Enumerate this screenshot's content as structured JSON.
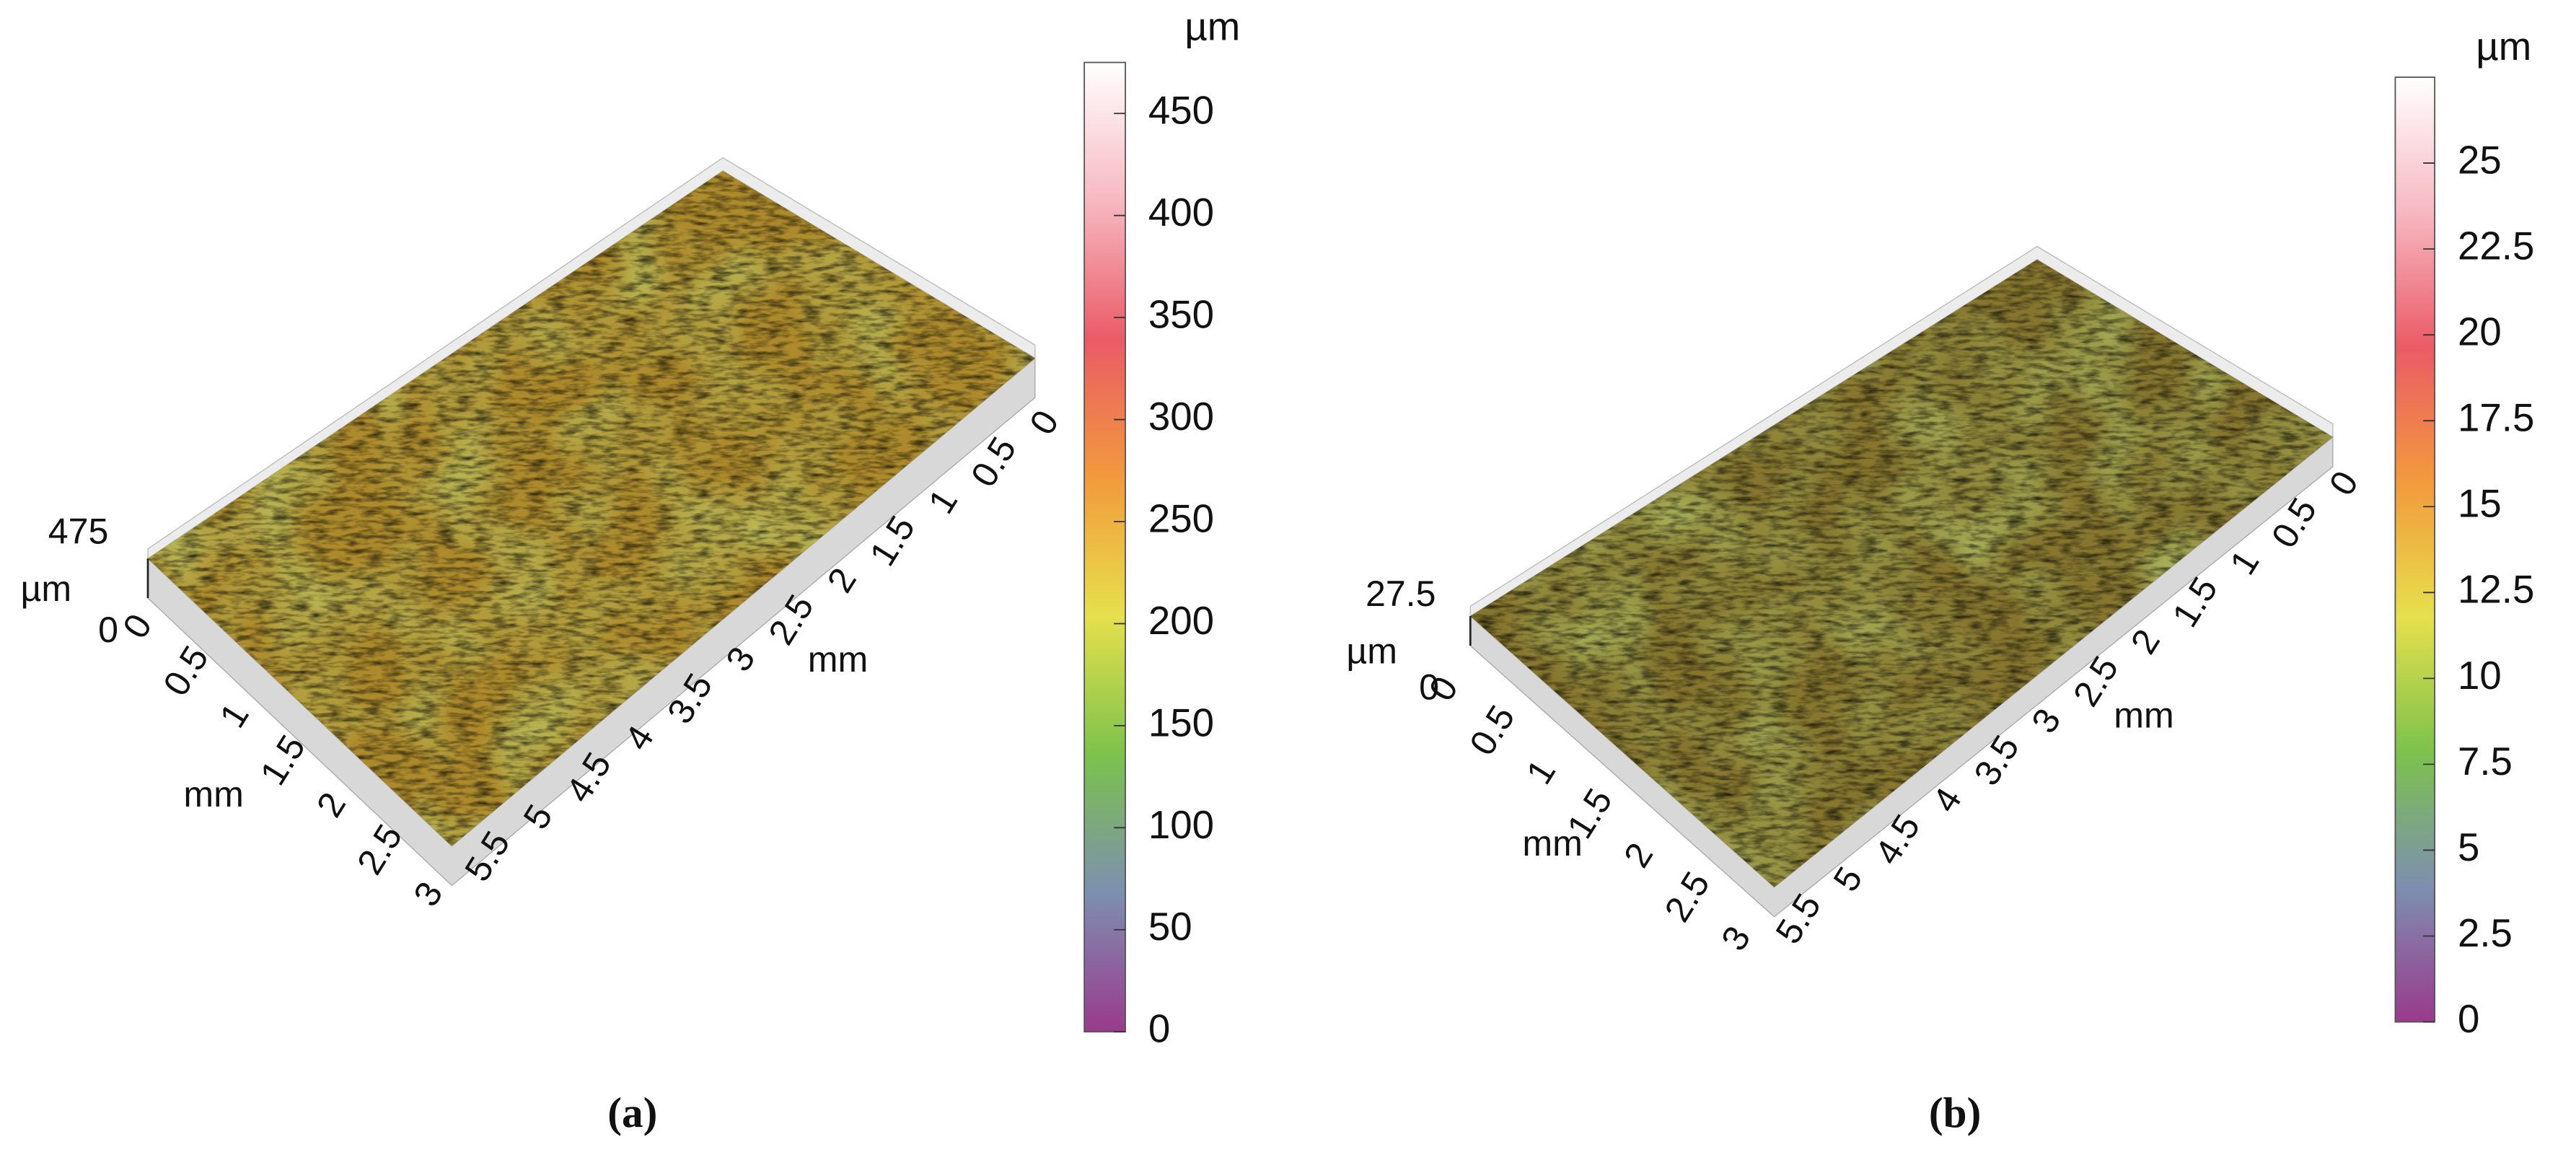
{
  "chart_data": [
    {
      "type": "surface3d",
      "caption": "(a)",
      "xlabel": "mm",
      "ylabel": "mm",
      "zlabel": "µm",
      "colorbar_label": "µm",
      "xlim": [
        0,
        5.5
      ],
      "xticks": [
        0,
        0.5,
        1,
        1.5,
        2,
        2.5,
        3,
        3.5,
        4,
        4.5,
        5,
        5.5
      ],
      "ylim": [
        0,
        3
      ],
      "yticks": [
        0,
        0.5,
        1,
        1.5,
        2,
        2.5,
        3
      ],
      "zlim": [
        0,
        475
      ],
      "zticks": [
        0,
        475
      ],
      "clim": [
        0,
        475
      ],
      "cticks": [
        0,
        50,
        100,
        150,
        200,
        250,
        300,
        350,
        400,
        450
      ],
      "colormap": [
        "#9a3a8c",
        "#7d8fb0",
        "#7cc24c",
        "#e6e04c",
        "#f29a3c",
        "#ea5b66",
        "#f7b8c2",
        "#ffffff"
      ],
      "surface_color": "#ad8b2c"
    },
    {
      "type": "surface3d",
      "caption": "(b)",
      "xlabel": "mm",
      "ylabel": "mm",
      "zlabel": "µm",
      "colorbar_label": "µm",
      "xlim": [
        0,
        5.5
      ],
      "xticks": [
        0,
        0.5,
        1,
        1.5,
        2,
        2.5,
        3,
        3.5,
        4,
        4.5,
        5,
        5.5
      ],
      "ylim": [
        0,
        3
      ],
      "yticks": [
        0,
        0.5,
        1,
        1.5,
        2,
        2.5,
        3
      ],
      "zlim": [
        0,
        27.5
      ],
      "zticks": [
        0,
        27.5
      ],
      "clim": [
        0,
        27.5
      ],
      "cticks": [
        0,
        2.5,
        5,
        7.5,
        10,
        12.5,
        15,
        17.5,
        20,
        22.5,
        25
      ],
      "colormap": [
        "#9a3a8c",
        "#7d8fb0",
        "#7cc24c",
        "#e6e04c",
        "#f29a3c",
        "#ea5b66",
        "#f7b8c2",
        "#ffffff"
      ],
      "surface_color": "#86762e"
    }
  ]
}
